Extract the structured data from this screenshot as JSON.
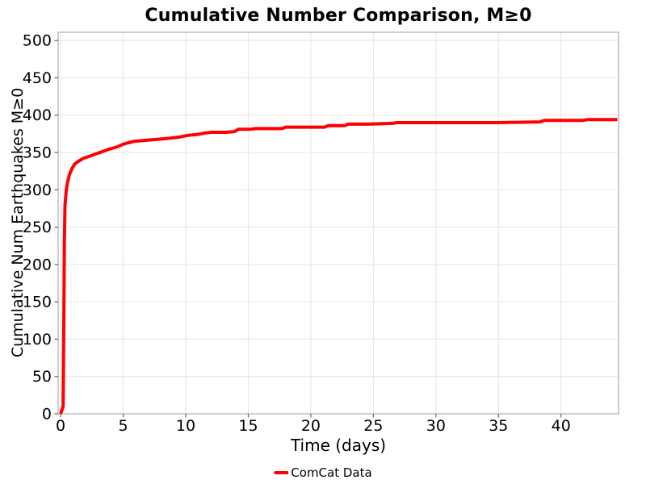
{
  "chart_data": {
    "type": "line",
    "title": "Cumulative Number Comparison, M≥0",
    "xlabel": "Time (days)",
    "ylabel": "Cumulative Num Earthquakes M≥0",
    "xlim": [
      -0.2,
      44.6
    ],
    "ylim": [
      0,
      511
    ],
    "xticks": [
      0,
      5,
      10,
      15,
      20,
      25,
      30,
      35,
      40
    ],
    "yticks": [
      0,
      50,
      100,
      150,
      200,
      250,
      300,
      350,
      400,
      450,
      500
    ],
    "grid": true,
    "legend": {
      "position": "bottom-center",
      "entries": [
        {
          "label": "ComCat Data",
          "color": "#ff0000"
        }
      ]
    },
    "series": [
      {
        "name": "ComCat Data",
        "color": "#ff0000",
        "linewidth": 4,
        "points": [
          [
            0,
            0
          ],
          [
            0.2,
            10
          ],
          [
            0.25,
            120
          ],
          [
            0.3,
            230
          ],
          [
            0.35,
            280
          ],
          [
            0.45,
            300
          ],
          [
            0.55,
            310
          ],
          [
            0.7,
            320
          ],
          [
            0.9,
            328
          ],
          [
            1.1,
            334
          ],
          [
            1.4,
            338
          ],
          [
            1.8,
            342
          ],
          [
            2.3,
            345
          ],
          [
            2.8,
            348
          ],
          [
            3.3,
            351
          ],
          [
            3.8,
            354
          ],
          [
            4.2,
            356
          ],
          [
            4.6,
            358
          ],
          [
            5.0,
            361
          ],
          [
            5.4,
            363
          ],
          [
            5.9,
            365
          ],
          [
            6.6,
            366
          ],
          [
            7.3,
            367
          ],
          [
            8.0,
            368
          ],
          [
            8.7,
            369
          ],
          [
            9.2,
            370
          ],
          [
            9.6,
            371
          ],
          [
            10.2,
            373
          ],
          [
            10.9,
            374
          ],
          [
            11.5,
            376
          ],
          [
            12.1,
            377
          ],
          [
            13.2,
            377
          ],
          [
            13.9,
            378
          ],
          [
            14.2,
            381
          ],
          [
            15.1,
            381
          ],
          [
            15.6,
            382
          ],
          [
            17.7,
            382
          ],
          [
            18.0,
            384
          ],
          [
            19.5,
            384
          ],
          [
            21.1,
            384
          ],
          [
            21.4,
            386
          ],
          [
            22.7,
            386
          ],
          [
            23.0,
            388
          ],
          [
            24.6,
            388
          ],
          [
            26.5,
            389
          ],
          [
            26.9,
            390
          ],
          [
            29.0,
            390
          ],
          [
            32.0,
            390
          ],
          [
            35.0,
            390
          ],
          [
            38.3,
            391
          ],
          [
            38.7,
            393
          ],
          [
            41.8,
            393
          ],
          [
            42.1,
            394
          ],
          [
            44.5,
            394
          ]
        ]
      }
    ]
  },
  "colors": {
    "grid": "#e4e4e4",
    "frame": "#b3b3b3",
    "tick": "#666666",
    "text": "#000000",
    "accent_red": "#ff0000"
  }
}
